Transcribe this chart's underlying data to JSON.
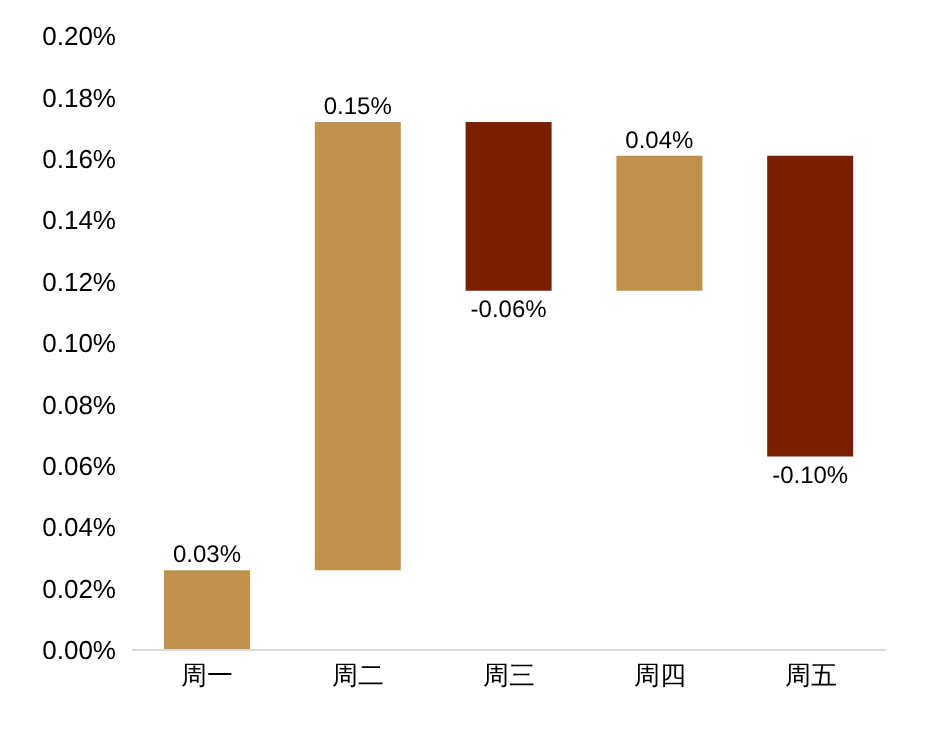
{
  "chart_data": {
    "type": "bar",
    "categories": [
      "周一",
      "周二",
      "周三",
      "周四",
      "周五"
    ],
    "values": [
      0.026,
      0.146,
      -0.055,
      0.044,
      -0.098
    ],
    "base": [
      0,
      0.026,
      0.172,
      0.117,
      0.161
    ],
    "colors": [
      "#c0904d",
      "#c0904d",
      "#7a1f00",
      "#c0904d",
      "#7a1f00"
    ],
    "value_labels": [
      "0.03%",
      "0.15%",
      "-0.06%",
      "0.04%",
      "-0.10%"
    ],
    "ylim": [
      0,
      0.2
    ],
    "yticks": [
      {
        "value": 0,
        "label": "0.00%"
      },
      {
        "value": 0.02,
        "label": "0.02%"
      },
      {
        "value": 0.04,
        "label": "0.04%"
      },
      {
        "value": 0.06,
        "label": "0.06%"
      },
      {
        "value": 0.08,
        "label": "0.08%"
      },
      {
        "value": 0.1,
        "label": "0.10%"
      },
      {
        "value": 0.12,
        "label": "0.12%"
      },
      {
        "value": 0.14,
        "label": "0.14%"
      },
      {
        "value": 0.16,
        "label": "0.16%"
      },
      {
        "value": 0.18,
        "label": "0.18%"
      },
      {
        "value": 0.2,
        "label": "0.20%"
      }
    ],
    "grid": false
  }
}
